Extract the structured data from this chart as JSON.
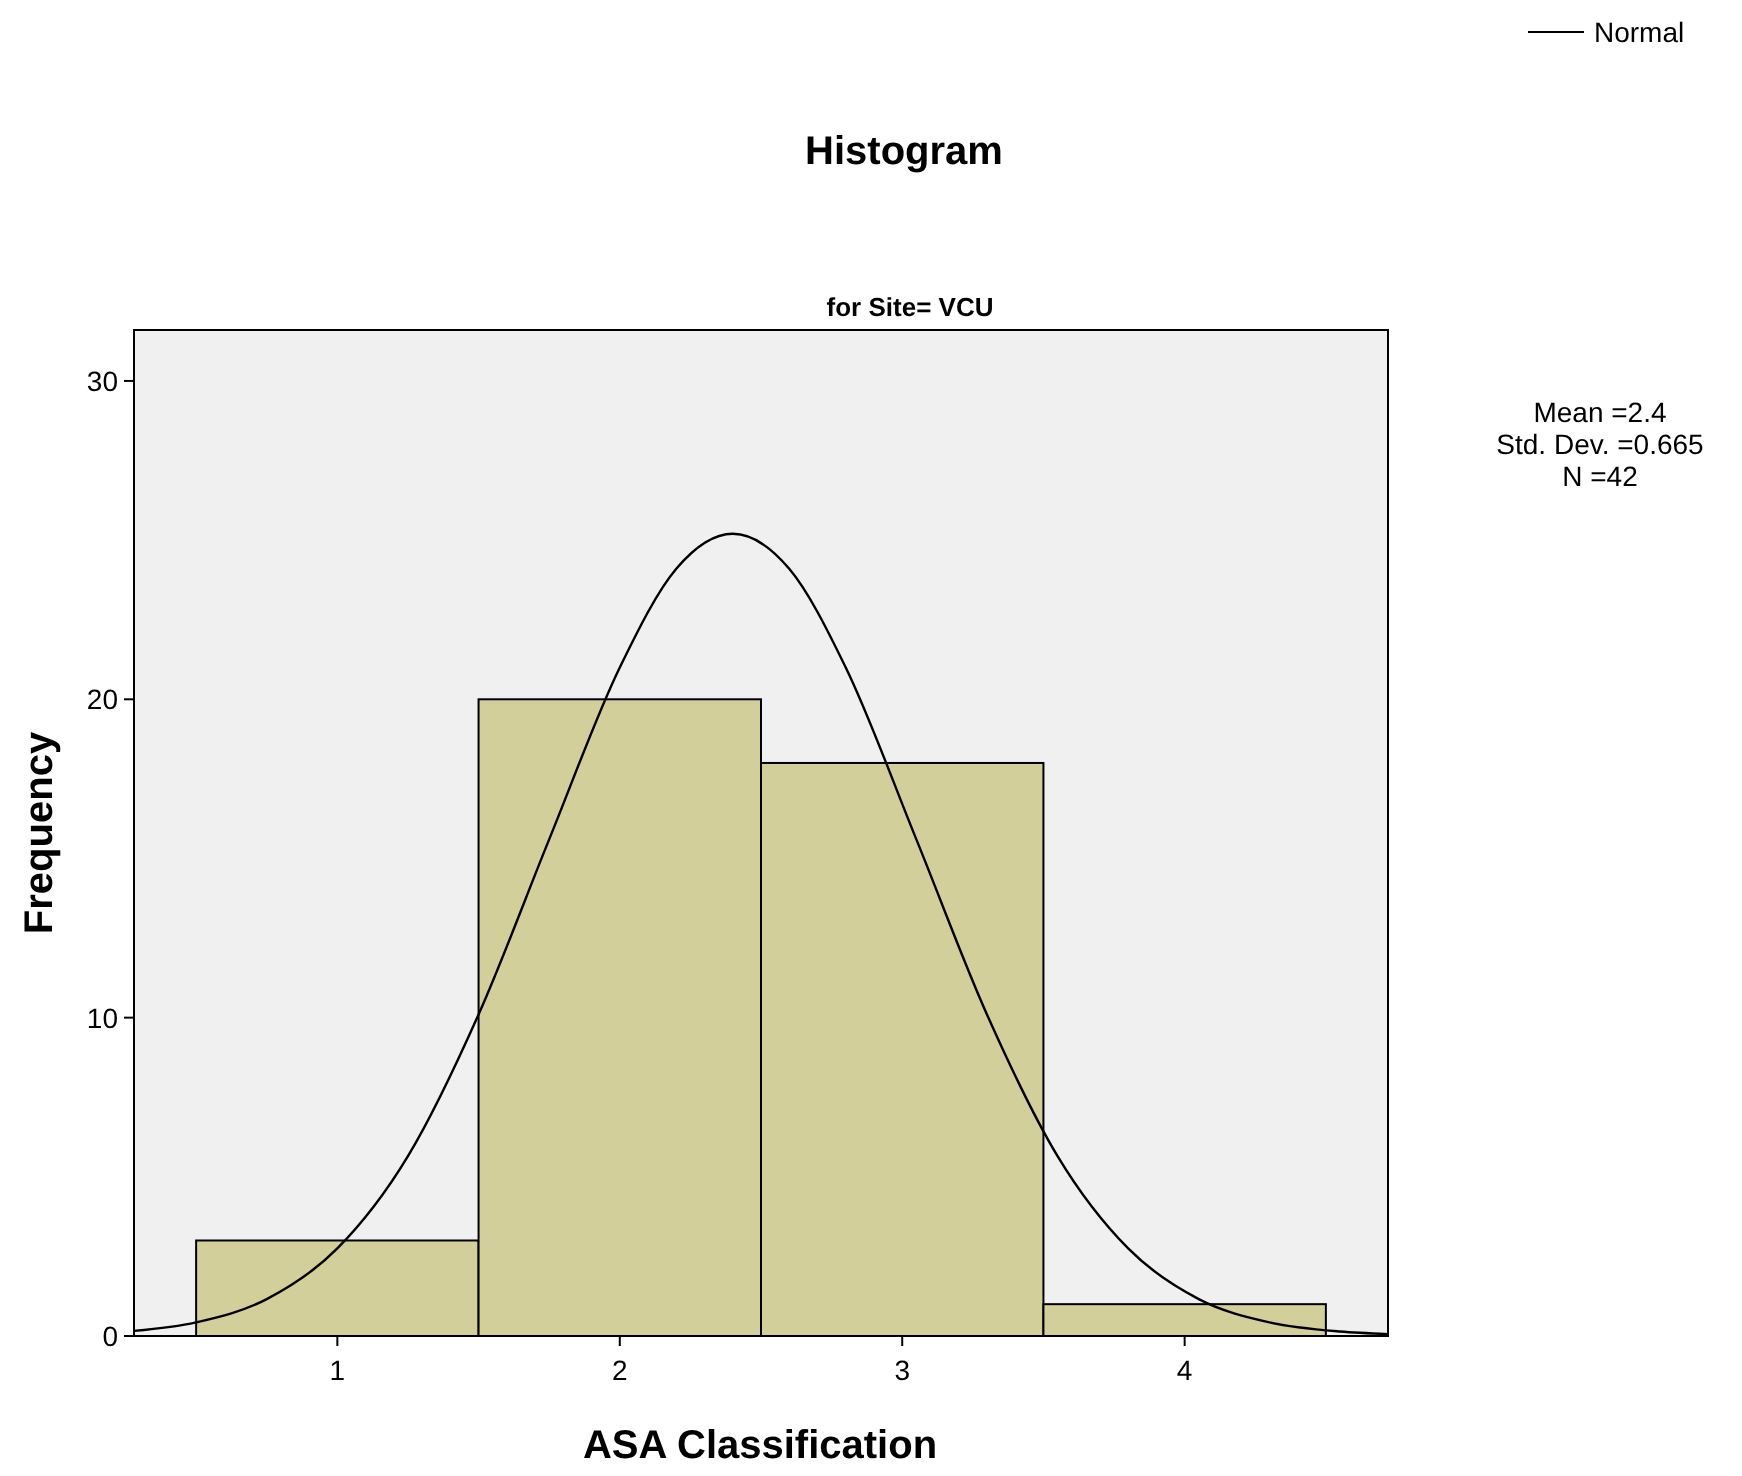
{
  "chart_data": {
    "type": "histogram",
    "title": "Histogram",
    "subtitle": "for Site= VCU",
    "xlabel": "ASA Classification",
    "ylabel": "Frequency",
    "xlim": [
      0.28,
      4.72
    ],
    "xticks": [
      1,
      2,
      3,
      4
    ],
    "ylim": [
      0,
      31.6
    ],
    "yticks": [
      0,
      10,
      20,
      30
    ],
    "grid": false,
    "legend": "top right",
    "marker": "none",
    "annotations": [
      "Mean =2.4",
      "Std. Dev. =0.665",
      "N =42"
    ],
    "series": [
      {
        "color": "#d3cf9b",
        "bins": [
          0.5,
          1.5,
          2.5,
          3.5,
          4.5
        ],
        "values": [
          3,
          20,
          18,
          1
        ]
      },
      {
        "type": "line",
        "name": "Normal",
        "color": "#000000",
        "line_style": "solid",
        "x": [
          0.28,
          0.5,
          0.75,
          1.0,
          1.25,
          1.5,
          1.75,
          2.0,
          2.2,
          2.4,
          2.6,
          2.8,
          3.05,
          3.3,
          3.55,
          3.8,
          4.05,
          4.3,
          4.55,
          4.72
        ],
        "values": [
          0.16,
          0.43,
          1.16,
          2.75,
          5.65,
          10.1,
          15.6,
          21.0,
          24.1,
          25.2,
          24.1,
          21.0,
          15.6,
          10.1,
          5.65,
          2.75,
          1.16,
          0.43,
          0.14,
          0.06
        ]
      }
    ]
  }
}
